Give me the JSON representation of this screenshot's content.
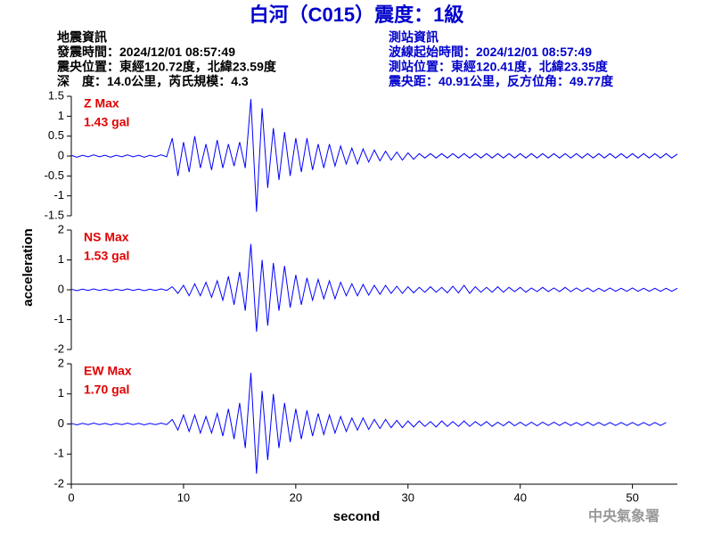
{
  "chart_data": {
    "type": "line",
    "title": "白河（C015）震度：1級",
    "info_left": [
      "地震資訊",
      "發震時間：2024/12/01 08:57:49",
      "震央位置：東經120.72度，北緯23.59度",
      "深　度：14.0公里，芮氏規模：4.3"
    ],
    "info_right": [
      "測站資訊",
      "波線起始時間：2024/12/01 08:57:49",
      "測站位置：東經120.41度，北緯23.35度",
      "震央距：40.91公里，反方位角：49.77度"
    ],
    "xlabel": "second",
    "ylabel": "acceleration",
    "credit": "中央氣象署",
    "xlim": [
      0,
      54
    ],
    "xticks": [
      0,
      10,
      20,
      30,
      40,
      50
    ],
    "x": [
      0,
      0.5,
      1,
      1.5,
      2,
      2.5,
      3,
      3.5,
      4,
      4.5,
      5,
      5.5,
      6,
      6.5,
      7,
      7.5,
      8,
      8.5,
      9,
      9.5,
      10,
      10.5,
      11,
      11.5,
      12,
      12.5,
      13,
      13.5,
      14,
      14.5,
      15,
      15.5,
      16,
      16.5,
      17,
      17.5,
      18,
      18.5,
      19,
      19.5,
      20,
      20.5,
      21,
      21.5,
      22,
      22.5,
      23,
      23.5,
      24,
      24.5,
      25,
      25.5,
      26,
      26.5,
      27,
      27.5,
      28,
      28.5,
      29,
      29.5,
      30,
      30.5,
      31,
      31.5,
      32,
      32.5,
      33,
      33.5,
      34,
      34.5,
      35,
      35.5,
      36,
      36.5,
      37,
      37.5,
      38,
      38.5,
      39,
      39.5,
      40,
      40.5,
      41,
      41.5,
      42,
      42.5,
      43,
      43.5,
      44,
      44.5,
      45,
      45.5,
      46,
      46.5,
      47,
      47.5,
      48,
      48.5,
      49,
      49.5,
      50,
      50.5,
      51,
      51.5,
      52,
      52.5,
      53,
      53.5,
      54
    ],
    "panels": [
      {
        "name": "Z Max",
        "max_label": "1.43 gal",
        "color": "#0000ff",
        "label_color": "#e00000",
        "ylim": [
          -1.5,
          1.5
        ],
        "yticks": [
          -1.5,
          -1,
          -0.5,
          0,
          0.5,
          1,
          1.5
        ],
        "values": [
          0.02,
          -0.03,
          0.02,
          -0.02,
          0.03,
          -0.02,
          0.02,
          -0.03,
          0.02,
          -0.02,
          0.03,
          -0.02,
          0.02,
          -0.03,
          0.02,
          -0.02,
          0.03,
          -0.02,
          0.45,
          -0.5,
          0.35,
          -0.4,
          0.5,
          -0.3,
          0.3,
          -0.35,
          0.4,
          -0.3,
          0.3,
          -0.25,
          0.35,
          -0.3,
          1.43,
          -1.4,
          1.2,
          -0.8,
          0.7,
          -0.6,
          0.6,
          -0.5,
          0.45,
          -0.4,
          0.45,
          -0.35,
          0.3,
          -0.3,
          0.3,
          -0.25,
          0.25,
          -0.2,
          0.2,
          -0.2,
          0.18,
          -0.15,
          0.15,
          -0.12,
          0.12,
          -0.1,
          0.1,
          -0.1,
          0.08,
          -0.08,
          0.06,
          -0.05,
          0.06,
          -0.05,
          0.06,
          -0.05,
          0.06,
          -0.05,
          0.06,
          -0.05,
          0.06,
          -0.05,
          0.06,
          -0.05,
          0.06,
          -0.05,
          0.06,
          -0.05,
          0.06,
          -0.05,
          0.06,
          -0.05,
          0.06,
          -0.05,
          0.06,
          -0.05,
          0.06,
          -0.05,
          0.06,
          -0.05,
          0.06,
          -0.05,
          0.06,
          -0.05,
          0.06,
          -0.05,
          0.06,
          -0.05,
          0.06,
          -0.05,
          0.06,
          -0.05,
          0.06,
          -0.05,
          0.06,
          -0.05,
          0.05
        ]
      },
      {
        "name": "NS Max",
        "max_label": "1.53 gal",
        "color": "#0000ff",
        "label_color": "#e00000",
        "ylim": [
          -2,
          2
        ],
        "yticks": [
          -2,
          -1,
          0,
          1,
          2
        ],
        "values": [
          0.02,
          -0.03,
          0.02,
          -0.02,
          0.03,
          -0.02,
          0.02,
          -0.03,
          0.02,
          -0.02,
          0.03,
          -0.02,
          0.02,
          -0.03,
          0.02,
          -0.02,
          0.03,
          -0.02,
          0.1,
          -0.12,
          0.15,
          -0.2,
          0.2,
          -0.2,
          0.25,
          -0.25,
          0.3,
          -0.35,
          0.45,
          -0.5,
          0.6,
          -0.7,
          1.53,
          -1.4,
          1.0,
          -1.2,
          0.9,
          -0.7,
          0.8,
          -0.6,
          0.5,
          -0.5,
          0.4,
          -0.35,
          0.35,
          -0.3,
          0.3,
          -0.3,
          0.25,
          -0.2,
          0.2,
          -0.2,
          0.18,
          -0.18,
          0.15,
          -0.15,
          0.15,
          -0.12,
          0.12,
          -0.12,
          0.1,
          -0.1,
          0.08,
          -0.08,
          0.1,
          -0.08,
          0.08,
          -0.1,
          0.12,
          -0.1,
          0.15,
          -0.12,
          0.1,
          -0.08,
          0.08,
          -0.08,
          0.1,
          -0.08,
          0.08,
          -0.06,
          0.08,
          -0.08,
          0.06,
          -0.06,
          0.08,
          -0.06,
          0.06,
          -0.06,
          0.08,
          -0.06,
          0.06,
          -0.05,
          0.06,
          -0.06,
          0.05,
          -0.05,
          0.06,
          -0.05,
          0.05,
          -0.05,
          0.06,
          -0.05,
          0.05,
          -0.05,
          0.05,
          -0.05,
          0.05,
          -0.05,
          0.05
        ]
      },
      {
        "name": "EW Max",
        "max_label": "1.70 gal",
        "color": "#0000ff",
        "label_color": "#e00000",
        "ylim": [
          -2,
          2
        ],
        "yticks": [
          -2,
          -1,
          0,
          1,
          2
        ],
        "values": [
          0.02,
          -0.03,
          0.02,
          -0.02,
          0.03,
          -0.02,
          0.02,
          -0.03,
          0.02,
          -0.02,
          0.03,
          -0.02,
          0.02,
          -0.03,
          0.02,
          -0.02,
          0.03,
          -0.02,
          0.15,
          -0.2,
          0.3,
          -0.25,
          0.3,
          -0.3,
          0.25,
          -0.3,
          0.35,
          -0.4,
          0.5,
          -0.5,
          0.7,
          -0.8,
          1.7,
          -1.65,
          1.1,
          -1.2,
          1.0,
          -0.8,
          0.7,
          -0.6,
          0.5,
          -0.5,
          0.45,
          -0.4,
          0.35,
          -0.35,
          0.3,
          -0.3,
          0.25,
          -0.25,
          0.2,
          -0.2,
          0.2,
          -0.18,
          0.15,
          -0.15,
          0.15,
          -0.12,
          0.12,
          -0.12,
          0.1,
          -0.1,
          0.1,
          -0.08,
          0.08,
          -0.1,
          0.1,
          -0.08,
          0.08,
          -0.08,
          0.1,
          -0.08,
          0.08,
          -0.06,
          0.08,
          -0.08,
          0.06,
          -0.06,
          0.08,
          -0.06,
          0.06,
          -0.06,
          0.06,
          -0.06,
          0.06,
          -0.05,
          0.06,
          -0.05,
          0.06,
          -0.05,
          0.05,
          -0.05,
          0.06,
          -0.05,
          0.05,
          -0.05,
          0.05,
          -0.05,
          0.05,
          -0.05,
          0.05,
          -0.05,
          0.05,
          -0.05,
          0.05,
          -0.05,
          0.05
        ]
      }
    ]
  }
}
